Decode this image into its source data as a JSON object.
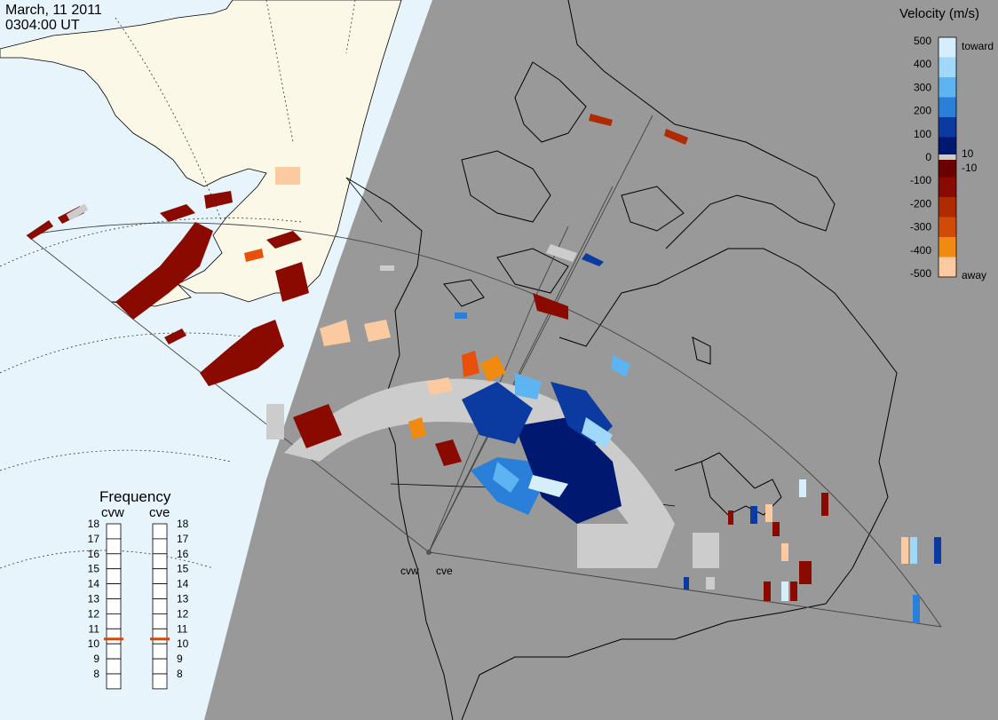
{
  "date": "March, 11 2011",
  "time": "0304:00 UT",
  "colors": {
    "day_sky": "#e8f4fc",
    "night": "#999999",
    "land_day": "#fbf8e8",
    "ground_scatter": "#cccccc"
  },
  "velocity_scale": {
    "title": "Velocity (m/s)",
    "ticks": [
      "500",
      "400",
      "300",
      "200",
      "100",
      "0",
      "-100",
      "-200",
      "-300",
      "-400",
      "-500"
    ],
    "toward_label": "toward",
    "away_label": "away",
    "pos_threshold": "10",
    "neg_threshold": "-10",
    "color_stops": [
      "#d6eefc",
      "#9fd8f8",
      "#5eb4f0",
      "#2a7fd8",
      "#0b3aa0",
      "#001870",
      "#6b0000",
      "#8a0a00",
      "#b02a00",
      "#d04a08",
      "#f08a10",
      "#fccaa0"
    ]
  },
  "frequency": {
    "title": "Frequency",
    "radars": [
      {
        "code": "cvw",
        "value": 11
      },
      {
        "code": "cve",
        "value": 11
      }
    ],
    "ticks": [
      "18",
      "17",
      "16",
      "15",
      "14",
      "13",
      "12",
      "11",
      "10",
      "9",
      "8"
    ],
    "marker_color": "#d04a10"
  },
  "radars": [
    "cvw",
    "cve"
  ]
}
